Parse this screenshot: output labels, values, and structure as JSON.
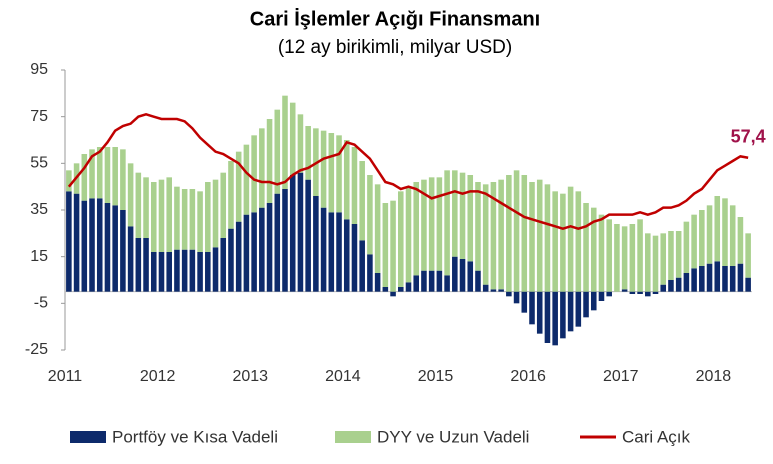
{
  "chart_data": {
    "type": "bar",
    "title": "Cari İşlemler Açığı Finansmanı",
    "subtitle": "(12 ay birikimli, milyar USD)",
    "categories": [
      "2011",
      null,
      null,
      null,
      null,
      null,
      null,
      null,
      null,
      null,
      null,
      null,
      "2012",
      null,
      null,
      null,
      null,
      null,
      null,
      null,
      null,
      null,
      null,
      null,
      "2013",
      null,
      null,
      null,
      null,
      null,
      null,
      null,
      null,
      null,
      null,
      null,
      "2014",
      null,
      null,
      null,
      null,
      null,
      null,
      null,
      null,
      null,
      null,
      null,
      "2015",
      null,
      null,
      null,
      null,
      null,
      null,
      null,
      null,
      null,
      null,
      null,
      "2016",
      null,
      null,
      null,
      null,
      null,
      null,
      null,
      null,
      null,
      null,
      null,
      "2017",
      null,
      null,
      null,
      null,
      null,
      null,
      null,
      null,
      null,
      null,
      null,
      "2018",
      null,
      null,
      null,
      null
    ],
    "series": [
      {
        "name": "Portföy ve Kısa Vadeli",
        "type": "bar",
        "color": "#0d2a6b",
        "values": [
          43,
          42,
          39,
          40,
          40,
          38,
          37,
          35,
          28,
          23,
          23,
          17,
          17,
          17,
          18,
          18,
          18,
          17,
          17,
          19,
          23,
          27,
          30,
          33,
          34,
          36,
          38,
          42,
          44,
          50,
          51,
          48,
          41,
          36,
          34,
          34,
          31,
          29,
          22,
          16,
          8,
          2,
          -2,
          2,
          4,
          7,
          9,
          9,
          9,
          7,
          15,
          14,
          13,
          9,
          3,
          1,
          1,
          -2,
          -5,
          -9,
          -14,
          -18,
          -22,
          -23,
          -20,
          -17,
          -15,
          -11,
          -8,
          -4,
          -2,
          0,
          1,
          -1,
          -1,
          -2,
          -1,
          3,
          5,
          6,
          8,
          10,
          11,
          12,
          13,
          11,
          11,
          12,
          6
        ]
      },
      {
        "name": "DYY ve Uzun Vadeli",
        "type": "bar",
        "color": "#a9d08e",
        "values": [
          9,
          13,
          20,
          21,
          22,
          24,
          25,
          26,
          27,
          28,
          26,
          30,
          31,
          32,
          27,
          26,
          26,
          26,
          30,
          29,
          28,
          29,
          30,
          30,
          33,
          34,
          36,
          36,
          40,
          31,
          25,
          23,
          29,
          33,
          34,
          33,
          34,
          33,
          34,
          34,
          38,
          36,
          39,
          41,
          41,
          40,
          39,
          40,
          40,
          45,
          37,
          37,
          37,
          38,
          43,
          46,
          47,
          50,
          52,
          50,
          47,
          48,
          46,
          43,
          42,
          45,
          43,
          38,
          36,
          33,
          31,
          29,
          27,
          29,
          31,
          25,
          24,
          22,
          21,
          20,
          22,
          23,
          24,
          25,
          28,
          29,
          26,
          20,
          19
        ]
      },
      {
        "name": "Cari Açık",
        "type": "line",
        "color": "#c00000",
        "values": [
          45,
          49,
          53,
          58,
          60,
          64,
          69,
          71,
          72,
          75,
          76,
          75,
          74,
          74,
          74,
          73,
          70,
          66,
          63,
          60,
          59,
          57,
          55,
          51,
          48,
          47,
          47,
          46,
          47,
          50,
          52,
          53,
          55,
          57,
          58,
          59,
          64,
          63,
          60,
          57,
          52,
          47,
          46,
          44,
          45,
          44,
          42,
          40,
          41,
          42,
          43,
          42,
          43,
          43,
          42,
          40,
          38,
          36,
          34,
          32,
          31,
          30,
          29,
          28,
          27,
          28,
          27,
          28,
          30,
          31,
          33,
          33,
          33,
          33,
          34,
          33,
          34,
          36,
          36,
          37,
          39,
          42,
          44,
          48,
          52,
          54,
          56,
          58,
          57.4
        ],
        "value_labels": {
          "88": "57,4"
        },
        "label_color": "#a0124a"
      }
    ],
    "ylim": [
      -25,
      95
    ],
    "yticks": [
      -25,
      -5,
      15,
      35,
      55,
      75,
      95
    ]
  }
}
